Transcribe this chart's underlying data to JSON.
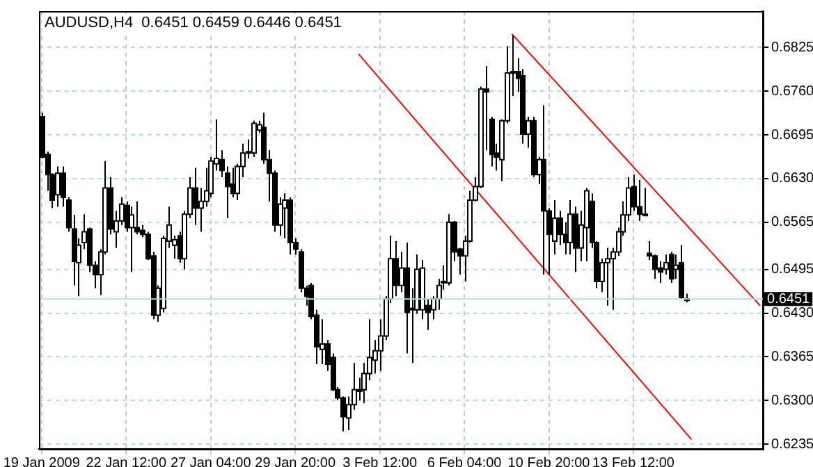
{
  "chart_data": {
    "type": "candlestick",
    "title": "AUDUSD,H4  0.6451 0.6459 0.6446 0.6451",
    "categories": [
      "19 Jan 2009",
      null,
      null,
      null,
      null,
      null,
      null,
      null,
      null,
      null,
      null,
      null,
      null,
      null,
      null,
      null,
      "22 Jan 12:00",
      null,
      null,
      null,
      null,
      null,
      null,
      null,
      null,
      null,
      null,
      null,
      null,
      null,
      null,
      null,
      "27 Jan 04:00",
      null,
      null,
      null,
      null,
      null,
      null,
      null,
      null,
      null,
      null,
      null,
      null,
      null,
      null,
      null,
      "29 Jan 20:00",
      null,
      null,
      null,
      null,
      null,
      null,
      null,
      null,
      null,
      null,
      null,
      null,
      null,
      null,
      null,
      "3 Feb 12:00",
      null,
      null,
      null,
      null,
      null,
      null,
      null,
      null,
      null,
      null,
      null,
      null,
      null,
      null,
      null,
      "6 Feb 04:00",
      null,
      null,
      null,
      null,
      null,
      null,
      null,
      null,
      null,
      null,
      null,
      null,
      null,
      null,
      null,
      "10 Feb 20:00",
      null,
      null,
      null,
      null,
      null,
      null,
      null,
      null,
      null,
      null,
      null,
      null,
      null,
      null,
      null,
      "13 Feb 12:00",
      null,
      null,
      null,
      null,
      null,
      null,
      null,
      null,
      null,
      null,
      null,
      null,
      null,
      null,
      null,
      null,
      null,
      null,
      null,
      null,
      null,
      null,
      null,
      null
    ],
    "ohlc": [
      [
        0.6722,
        0.6728,
        0.666,
        0.6662
      ],
      [
        0.6666,
        0.667,
        0.6612,
        0.6636
      ],
      [
        0.6636,
        0.6638,
        0.6586,
        0.6598
      ],
      [
        0.6606,
        0.6648,
        0.6588,
        0.6638
      ],
      [
        0.6638,
        0.6648,
        0.6588,
        0.6602
      ],
      [
        0.6598,
        0.6602,
        0.6551,
        0.6557
      ],
      [
        0.6555,
        0.6576,
        0.6471,
        0.6507
      ],
      [
        0.6505,
        0.6541,
        0.6455,
        0.6531
      ],
      [
        0.6535,
        0.6577,
        0.6525,
        0.6551
      ],
      [
        0.6555,
        0.6557,
        0.6491,
        0.6501
      ],
      [
        0.6501,
        0.6507,
        0.6467,
        0.6487
      ],
      [
        0.6487,
        0.6525,
        0.6457,
        0.6521
      ],
      [
        0.6521,
        0.6656,
        0.6517,
        0.6616
      ],
      [
        0.6616,
        0.6632,
        0.6547,
        0.6555
      ],
      [
        0.6551,
        0.6582,
        0.6527,
        0.6567
      ],
      [
        0.6567,
        0.6602,
        0.6561,
        0.6592
      ],
      [
        0.659,
        0.6596,
        0.6551,
        0.6557
      ],
      [
        0.6557,
        0.6588,
        0.6491,
        0.6576
      ],
      [
        0.6557,
        0.6596,
        0.6547,
        0.6551
      ],
      [
        0.6553,
        0.6561,
        0.6543,
        0.6547
      ],
      [
        0.6547,
        0.6551,
        0.6509,
        0.6511
      ],
      [
        0.6515,
        0.6521,
        0.6421,
        0.6427
      ],
      [
        0.6427,
        0.6471,
        0.6417,
        0.6467
      ],
      [
        0.6437,
        0.6545,
        0.6431,
        0.6541
      ],
      [
        0.6537,
        0.6588,
        0.6527,
        0.6561
      ],
      [
        0.6531,
        0.6545,
        0.6511,
        0.6539
      ],
      [
        0.6545,
        0.6551,
        0.6505,
        0.6511
      ],
      [
        0.6511,
        0.6582,
        0.6495,
        0.6577
      ],
      [
        0.6577,
        0.6632,
        0.6571,
        0.6616
      ],
      [
        0.6616,
        0.6646,
        0.6561,
        0.6586
      ],
      [
        0.6586,
        0.6616,
        0.6551,
        0.6596
      ],
      [
        0.6596,
        0.6646,
        0.6588,
        0.6612
      ],
      [
        0.6608,
        0.6662,
        0.6602,
        0.6656
      ],
      [
        0.6652,
        0.6718,
        0.6642,
        0.666
      ],
      [
        0.6658,
        0.6672,
        0.6632,
        0.6642
      ],
      [
        0.6638,
        0.6648,
        0.6571,
        0.6618
      ],
      [
        0.6622,
        0.6646,
        0.6602,
        0.6608
      ],
      [
        0.6608,
        0.6652,
        0.6598,
        0.6648
      ],
      [
        0.6648,
        0.6682,
        0.6632,
        0.6668
      ],
      [
        0.6668,
        0.6688,
        0.666,
        0.667
      ],
      [
        0.6668,
        0.6716,
        0.6662,
        0.6712
      ],
      [
        0.6702,
        0.6716,
        0.6698,
        0.671
      ],
      [
        0.6706,
        0.6728,
        0.6652,
        0.6658
      ],
      [
        0.6658,
        0.6672,
        0.6596,
        0.6638
      ],
      [
        0.6638,
        0.6642,
        0.6551,
        0.6561
      ],
      [
        0.6561,
        0.6602,
        0.6545,
        0.6592
      ],
      [
        0.6586,
        0.6608,
        0.6541,
        0.6598
      ],
      [
        0.6598,
        0.6602,
        0.6517,
        0.6535
      ],
      [
        0.6535,
        0.6541,
        0.6517,
        0.6525
      ],
      [
        0.6521,
        0.6525,
        0.6461,
        0.6467
      ],
      [
        0.6467,
        0.6471,
        0.6441,
        0.6455
      ],
      [
        0.6471,
        0.6475,
        0.6421,
        0.6425
      ],
      [
        0.6427,
        0.6435,
        0.6354,
        0.638
      ],
      [
        0.6376,
        0.6421,
        0.6354,
        0.6384
      ],
      [
        0.6384,
        0.639,
        0.6344,
        0.6354
      ],
      [
        0.6364,
        0.637,
        0.6314,
        0.6316
      ],
      [
        0.6316,
        0.632,
        0.63,
        0.6304
      ],
      [
        0.6304,
        0.6306,
        0.6254,
        0.6276
      ],
      [
        0.6274,
        0.6306,
        0.6256,
        0.6294
      ],
      [
        0.6294,
        0.6356,
        0.6286,
        0.6316
      ],
      [
        0.6314,
        0.6334,
        0.63,
        0.6316
      ],
      [
        0.6316,
        0.6356,
        0.6296,
        0.634
      ],
      [
        0.634,
        0.6421,
        0.633,
        0.6364
      ],
      [
        0.636,
        0.639,
        0.634,
        0.6374
      ],
      [
        0.6374,
        0.6421,
        0.6344,
        0.6396
      ],
      [
        0.6396,
        0.6455,
        0.639,
        0.6451
      ],
      [
        0.6451,
        0.6545,
        0.6445,
        0.6511
      ],
      [
        0.6511,
        0.6537,
        0.6455,
        0.6471
      ],
      [
        0.6471,
        0.6521,
        0.6461,
        0.6497
      ],
      [
        0.6497,
        0.6535,
        0.637,
        0.6431
      ],
      [
        0.6435,
        0.6467,
        0.6356,
        0.6437
      ],
      [
        0.6435,
        0.6517,
        0.6429,
        0.6495
      ],
      [
        0.6435,
        0.6509,
        0.6421,
        0.6497
      ],
      [
        0.6441,
        0.6451,
        0.6405,
        0.6431
      ],
      [
        0.6435,
        0.6455,
        0.6421,
        0.6451
      ],
      [
        0.6451,
        0.6481,
        0.6435,
        0.6471
      ],
      [
        0.6475,
        0.6501,
        0.6465,
        0.6477
      ],
      [
        0.6475,
        0.6577,
        0.6471,
        0.6565
      ],
      [
        0.6565,
        0.6567,
        0.6507,
        0.6521
      ],
      [
        0.6525,
        0.6527,
        0.6487,
        0.6515
      ],
      [
        0.6515,
        0.6545,
        0.6477,
        0.6537
      ],
      [
        0.6537,
        0.6612,
        0.6535,
        0.6598
      ],
      [
        0.6598,
        0.6632,
        0.6596,
        0.6618
      ],
      [
        0.6618,
        0.6767,
        0.6616,
        0.6763
      ],
      [
        0.6763,
        0.6797,
        0.6672,
        0.6759
      ],
      [
        0.6718,
        0.6722,
        0.6648,
        0.6666
      ],
      [
        0.6668,
        0.6682,
        0.6642,
        0.6662
      ],
      [
        0.6658,
        0.6718,
        0.6626,
        0.6716
      ],
      [
        0.6716,
        0.6827,
        0.6712,
        0.6787
      ],
      [
        0.6787,
        0.6843,
        0.6753,
        0.6789
      ],
      [
        0.6789,
        0.6809,
        0.6759,
        0.6779
      ],
      [
        0.6783,
        0.6793,
        0.6682,
        0.6696
      ],
      [
        0.6696,
        0.6722,
        0.6676,
        0.6716
      ],
      [
        0.6716,
        0.6722,
        0.6632,
        0.6636
      ],
      [
        0.6636,
        0.6662,
        0.6622,
        0.6658
      ],
      [
        0.6658,
        0.6739,
        0.6487,
        0.6582
      ],
      [
        0.6582,
        0.6586,
        0.6487,
        0.6547
      ],
      [
        0.6537,
        0.6598,
        0.6517,
        0.6571
      ],
      [
        0.6571,
        0.6582,
        0.6531,
        0.6547
      ],
      [
        0.6547,
        0.6565,
        0.6517,
        0.6535
      ],
      [
        0.6535,
        0.6598,
        0.6517,
        0.6577
      ],
      [
        0.6577,
        0.6588,
        0.6491,
        0.6527
      ],
      [
        0.6527,
        0.6582,
        0.6507,
        0.6561
      ],
      [
        0.6557,
        0.6616,
        0.6507,
        0.6612
      ],
      [
        0.6596,
        0.6608,
        0.6527,
        0.6535
      ],
      [
        0.6535,
        0.6537,
        0.6467,
        0.6477
      ],
      [
        0.6477,
        0.6511,
        0.6461,
        0.6505
      ],
      [
        0.6505,
        0.6527,
        0.6441,
        0.6511
      ],
      [
        0.6511,
        0.6527,
        0.6435,
        0.6521
      ],
      [
        0.6521,
        0.6557,
        0.6515,
        0.6551
      ],
      [
        0.6551,
        0.6596,
        0.6545,
        0.6576
      ],
      [
        0.6576,
        0.6632,
        0.6567,
        0.6616
      ],
      [
        0.6618,
        0.6636,
        0.6582,
        0.6588
      ],
      [
        0.6588,
        0.6628,
        0.6567,
        0.6577
      ],
      [
        0.6577,
        0.6616,
        0.6576,
        0.6576
      ],
      [
        0.6519,
        0.6537,
        0.6509,
        0.6515
      ],
      [
        0.6515,
        0.6517,
        0.6481,
        0.6495
      ],
      [
        0.6497,
        0.6507,
        0.6475,
        0.6491
      ],
      [
        0.6495,
        0.6517,
        0.6487,
        0.6505
      ],
      [
        0.6517,
        0.6521,
        0.6475,
        0.6481
      ],
      [
        0.6495,
        0.6517,
        0.6481,
        0.6501
      ],
      [
        0.6505,
        0.6531,
        0.6451,
        0.6453
      ],
      [
        0.6451,
        0.6459,
        0.6446,
        0.6451
      ],
      null,
      null,
      null,
      null,
      null,
      null,
      null,
      null,
      null,
      null,
      null,
      null,
      null,
      null
    ],
    "series": [
      {
        "type": "line",
        "color": "#ff0000",
        "values": [
          null,
          null,
          null,
          null,
          null,
          null,
          null,
          null,
          null,
          null,
          null,
          null,
          null,
          null,
          null,
          null,
          null,
          null,
          null,
          null,
          null,
          null,
          null,
          null,
          null,
          null,
          null,
          null,
          null,
          null,
          null,
          null,
          null,
          null,
          null,
          null,
          null,
          null,
          null,
          null,
          null,
          null,
          null,
          null,
          null,
          null,
          null,
          null,
          null,
          null,
          null,
          null,
          null,
          null,
          null,
          null,
          null,
          null,
          null,
          null,
          0.6815,
          null,
          null,
          null,
          null,
          null,
          null,
          null,
          null,
          null,
          null,
          null,
          null,
          null,
          null,
          null,
          null,
          null,
          null,
          null,
          null,
          null,
          null,
          null,
          null,
          null,
          null,
          null,
          null,
          null,
          null,
          null,
          null,
          null,
          null,
          null,
          null,
          null,
          null,
          null,
          null,
          null,
          null,
          null,
          null,
          null,
          null,
          null,
          null,
          null,
          null,
          null,
          null,
          null,
          null,
          null,
          null,
          null,
          null,
          null,
          null,
          null,
          null,
          0.6242,
          null,
          null,
          null,
          null,
          null,
          null,
          null,
          null,
          null,
          null,
          null,
          null,
          null
        ]
      },
      {
        "type": "line",
        "color": "#ff0000",
        "values": [
          null,
          null,
          null,
          null,
          null,
          null,
          null,
          null,
          null,
          null,
          null,
          null,
          null,
          null,
          null,
          null,
          null,
          null,
          null,
          null,
          null,
          null,
          null,
          null,
          null,
          null,
          null,
          null,
          null,
          null,
          null,
          null,
          null,
          null,
          null,
          null,
          null,
          null,
          null,
          null,
          null,
          null,
          null,
          null,
          null,
          null,
          null,
          null,
          null,
          null,
          null,
          null,
          null,
          null,
          null,
          null,
          null,
          null,
          null,
          null,
          null,
          null,
          null,
          null,
          null,
          null,
          null,
          null,
          null,
          null,
          null,
          null,
          null,
          null,
          null,
          null,
          null,
          null,
          null,
          null,
          null,
          null,
          null,
          null,
          null,
          null,
          null,
          null,
          null,
          0.6845,
          null,
          null,
          null,
          null,
          null,
          null,
          null,
          null,
          null,
          null,
          null,
          null,
          null,
          null,
          null,
          null,
          null,
          null,
          null,
          null,
          null,
          null,
          null,
          null,
          null,
          null,
          null,
          null,
          null,
          null,
          null,
          null,
          null,
          null,
          null,
          null,
          null,
          null,
          null,
          null,
          null,
          null,
          null,
          null,
          null,
          null,
          0.6441
        ]
      }
    ],
    "ylim": [
      0.6228,
      0.6879
    ],
    "yticks": [
      0.6235,
      {
        "value": 0.63,
        "label": "0.6300"
      },
      0.6365,
      {
        "value": 0.643,
        "label": "0.6430"
      },
      0.6495,
      0.6565,
      {
        "value": 0.663,
        "label": "0.6630"
      },
      0.6695,
      {
        "value": 0.676,
        "label": "0.6760"
      },
      0.6825
    ],
    "ref_lines": [
      {
        "axis": "y",
        "value": 0.6451,
        "label": "0.6451",
        "color": "#a8e4e4"
      }
    ],
    "grid": true
  }
}
